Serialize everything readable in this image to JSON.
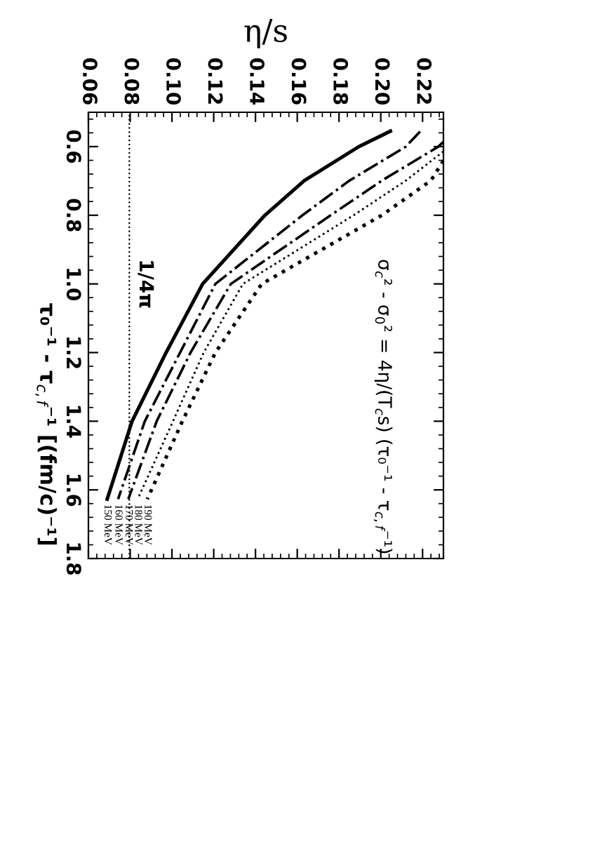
{
  "chart_data": {
    "type": "line",
    "xlabel": "η/s",
    "ylabel": "τ₀⁻¹ - τ$_{c,f}$⁻¹ [(fm/c)⁻¹]",
    "ylim": [
      1.8,
      0.5
    ],
    "yticks": [
      0.6,
      0.8,
      {
        "value": 1.0,
        "label": "1.0"
      },
      1.2,
      1.4,
      1.6,
      1.8
    ],
    "xlim": [
      0.06,
      0.23
    ],
    "xticks": [
      0.06,
      0.08,
      {
        "value": 0.1,
        "label": "0.10"
      },
      0.12,
      0.14,
      0.16,
      0.18,
      {
        "value": 0.2,
        "label": "0.20"
      },
      0.22
    ],
    "grid": false,
    "legend": false,
    "marker": "none",
    "series": [
      {
        "name": "150 MeV",
        "color": "#000000",
        "line_style": "solid",
        "values": [
          0.555,
          0.6,
          0.699,
          0.8,
          1.0,
          1.2,
          1.4,
          1.627
        ],
        "x": [
          0.2046,
          0.1895,
          0.1634,
          0.1445,
          0.1147,
          0.0972,
          0.0809,
          0.069
        ]
      },
      {
        "name": "160 MeV",
        "color": "#000000",
        "line_style": "dashdot",
        "values": [
          0.556,
          0.6,
          0.699,
          0.8,
          1.0,
          1.2,
          1.4,
          1.627
        ],
        "x": [
          0.2188,
          0.212,
          0.185,
          0.1625,
          0.1208,
          0.1039,
          0.087,
          0.0742
        ]
      },
      {
        "name": "170 MeV",
        "color": "#000000",
        "line_style": "dashdot",
        "values": [
          0.586,
          0.6,
          0.699,
          0.8,
          1.0,
          1.2,
          1.4,
          1.627
        ],
        "x": [
          0.23,
          0.2276,
          0.2005,
          0.176,
          0.1282,
          0.1089,
          0.0927,
          0.0791
        ]
      },
      {
        "name": "180 MeV",
        "color": "#000000",
        "line_style": "dotted",
        "values": [
          0.614,
          0.699,
          0.8,
          1.0,
          1.2,
          1.4,
          1.627
        ],
        "x": [
          0.23,
          0.212,
          0.187,
          0.134,
          0.1152,
          0.1005,
          0.0836
        ]
      },
      {
        "name": "190 MeV",
        "color": "#000000",
        "line_style": "dotted",
        "values": [
          0.641,
          0.699,
          0.8,
          1.0,
          1.2,
          1.4,
          1.627
        ],
        "x": [
          0.23,
          0.224,
          0.2005,
          0.143,
          0.1208,
          0.105,
          0.0882
        ]
      }
    ],
    "ref_lines": [
      {
        "axis": "x",
        "value": 0.0796,
        "label": "1/4π",
        "line_style": "dotted",
        "color": "#000000"
      }
    ],
    "annotations": [
      "σ$_{c}$² - σ$_{0}$² = 4η/(T$_{c}$s) (τ₀⁻¹ - τ$_{c,f}$⁻¹)"
    ]
  }
}
